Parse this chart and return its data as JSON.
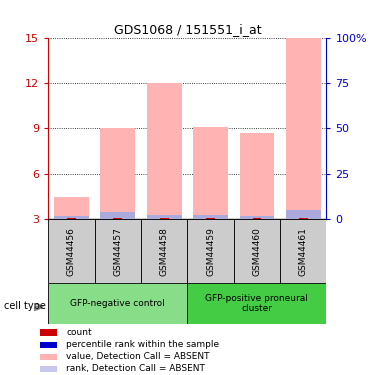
{
  "title": "GDS1068 / 151551_i_at",
  "samples": [
    "GSM44456",
    "GSM44457",
    "GSM44458",
    "GSM44459",
    "GSM44460",
    "GSM44461"
  ],
  "group1_label": "GFP-negative control",
  "group2_label": "GFP-positive proneural\ncluster",
  "cell_type_label": "cell type",
  "red_base": [
    3.0,
    3.0,
    3.0,
    3.0,
    3.0,
    3.0
  ],
  "blue_top": [
    3.22,
    3.48,
    3.3,
    3.28,
    3.22,
    3.65
  ],
  "pink_top": [
    4.5,
    9.0,
    12.0,
    9.1,
    8.7,
    15.0
  ],
  "ylim": [
    3,
    15
  ],
  "yticks_left": [
    3,
    6,
    9,
    12,
    15
  ],
  "right_tick_labels": [
    "0",
    "25",
    "50",
    "75",
    "100%"
  ],
  "left_axis_color": "#cc0000",
  "right_axis_color": "#0000cc",
  "bar_pink": "#ffb3b3",
  "bar_blue": "#aaaadd",
  "bar_red": "#cc0000",
  "group1_color": "#88dd88",
  "group2_color": "#44cc44",
  "label_bg_color": "#cccccc",
  "legend_items": [
    [
      "#cc0000",
      "count"
    ],
    [
      "#0000cc",
      "percentile rank within the sample"
    ],
    [
      "#ffb3b3",
      "value, Detection Call = ABSENT"
    ],
    [
      "#c8c8ee",
      "rank, Detection Call = ABSENT"
    ]
  ]
}
